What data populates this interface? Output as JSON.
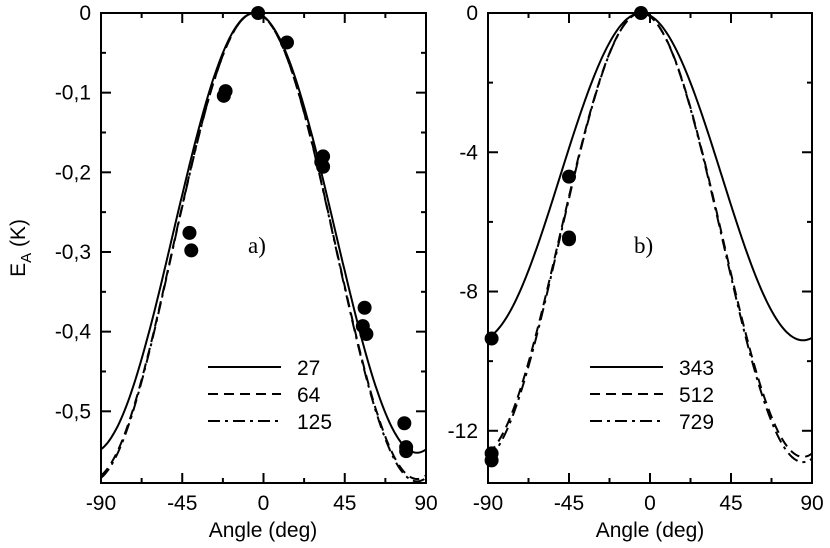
{
  "chart_data": [
    {
      "type": "line",
      "panel_label": "a)",
      "xlabel": "Angle (deg)",
      "ylabel": "E",
      "ylabel_sub": "A",
      "ylabel_unit": " (K)",
      "xlim": [
        -90,
        90
      ],
      "ylim": [
        -0.59,
        0
      ],
      "xticks": [
        -90,
        -45,
        0,
        45,
        90
      ],
      "xtick_labels": [
        "-90",
        "-45",
        "0",
        "45",
        "90"
      ],
      "yticks": [
        0,
        -0.1,
        -0.2,
        -0.3,
        -0.4,
        -0.5
      ],
      "ytick_labels": [
        "0",
        "-0,1",
        "-0,2",
        "-0,3",
        "-0,4",
        "-0,5"
      ],
      "legend_position": "bottom-right",
      "series": [
        {
          "name": "27",
          "style": "solid",
          "amplitude": 0.552,
          "center": -5,
          "markers_x": [
            -3,
            13,
            32,
            57,
            79
          ],
          "markers_y": [
            0.0,
            -0.037,
            -0.187,
            -0.403,
            -0.55
          ]
        },
        {
          "name": "64",
          "style": "dashed",
          "amplitude": 0.585,
          "center": -5,
          "markers_x": [
            -41,
            -22,
            33,
            56,
            78
          ],
          "markers_y": [
            -0.276,
            -0.104,
            -0.18,
            -0.37,
            -0.515
          ]
        },
        {
          "name": "125",
          "style": "dashdot",
          "amplitude": 0.588,
          "center": -5,
          "markers_x": [
            -40,
            -21,
            33,
            55,
            79
          ],
          "markers_y": [
            -0.298,
            -0.098,
            -0.193,
            -0.393,
            -0.545
          ]
        }
      ]
    },
    {
      "type": "line",
      "panel_label": "b)",
      "xlabel": "Angle (deg)",
      "xlim": [
        -90,
        90
      ],
      "ylim": [
        -13.5,
        0
      ],
      "xticks": [
        -90,
        -45,
        0,
        45,
        90
      ],
      "xtick_labels": [
        "-90",
        "-45",
        "0",
        "45",
        "90"
      ],
      "yticks": [
        0,
        -4,
        -8,
        -12
      ],
      "ytick_labels": [
        "0",
        "-4",
        "-8",
        "-12"
      ],
      "legend_position": "bottom-right",
      "series": [
        {
          "name": "343",
          "style": "solid",
          "amplitude": 9.4,
          "center": -5,
          "markers_x": [
            -5,
            -45,
            -88
          ],
          "markers_y": [
            0.0,
            -4.7,
            -9.35
          ]
        },
        {
          "name": "512",
          "style": "dashed",
          "amplitude": 12.75,
          "center": -5,
          "markers_x": [
            -45,
            -88
          ],
          "markers_y": [
            -6.45,
            -12.65
          ]
        },
        {
          "name": "729",
          "style": "dashdot",
          "amplitude": 12.9,
          "center": -5,
          "markers_x": [
            -45,
            -88
          ],
          "markers_y": [
            -6.5,
            -12.85
          ]
        }
      ]
    }
  ]
}
